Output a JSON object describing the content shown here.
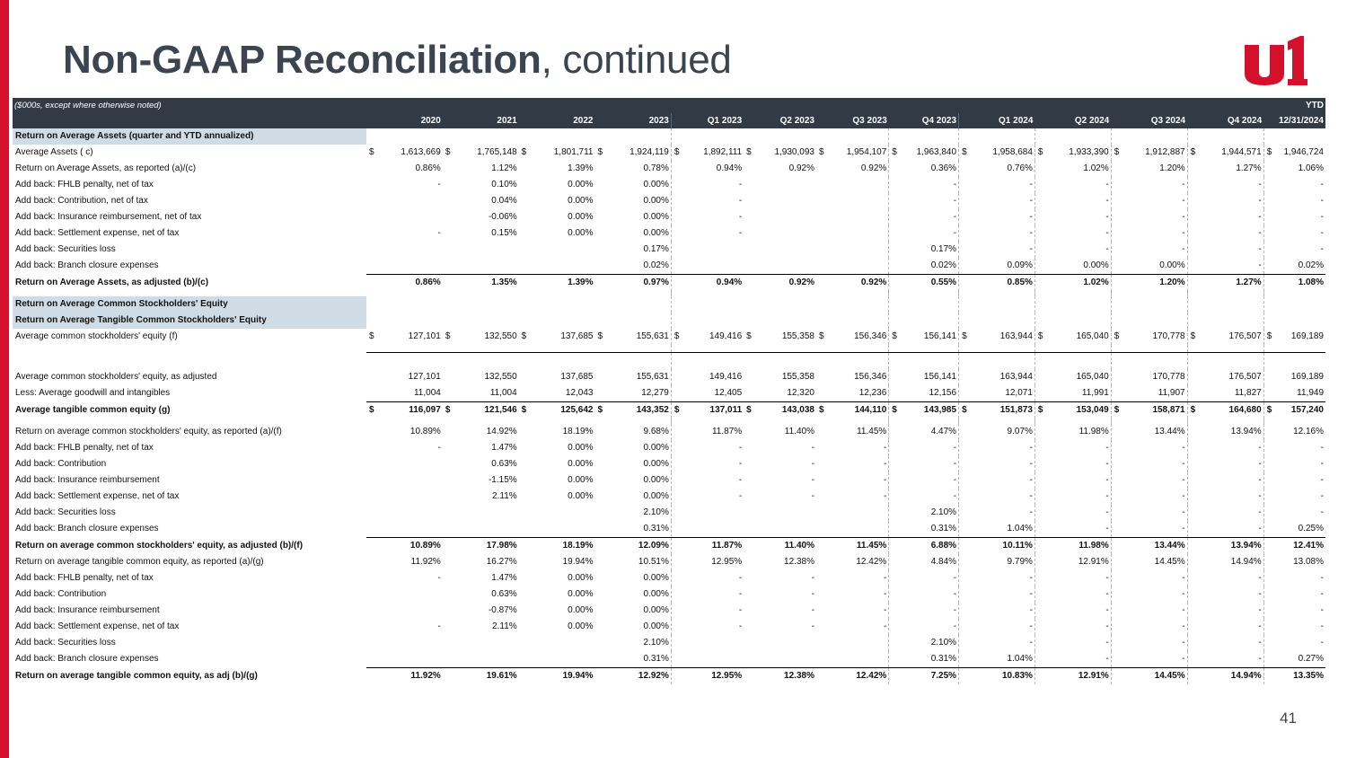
{
  "title_bold": "Non-GAAP Reconciliation",
  "title_rest": ", continued",
  "page_number": "41",
  "colors": {
    "accent_red": "#d4102b",
    "header_bg": "#323a45",
    "section_bg": "#cfdce6",
    "title": "#3b4451"
  },
  "table": {
    "note": "($000s, except where otherwise noted)",
    "ytd_label": "YTD",
    "columns": [
      "2020",
      "2021",
      "2022",
      "2023",
      "Q1 2023",
      "Q2 2023",
      "Q3 2023",
      "Q4 2023",
      "Q1 2024",
      "Q2 2024",
      "Q3 2024",
      "Q4 2024",
      "12/31/2024"
    ],
    "rows": [
      {
        "style": "sect",
        "label": "Return on Average Assets (quarter and YTD annualized)",
        "values": []
      },
      {
        "style": "",
        "label": "Average Assets ( c)",
        "dollar": true,
        "values": [
          "1,613,669",
          "1,765,148",
          "1,801,711",
          "1,924,119",
          "1,892,111",
          "1,930,093",
          "1,954,107",
          "1,963,840",
          "1,958,684",
          "1,933,390",
          "1,912,887",
          "1,944,571",
          "1,946,724"
        ]
      },
      {
        "style": "",
        "label": "Return on Average Assets, as reported (a)/(c)",
        "values": [
          "0.86%",
          "1.12%",
          "1.39%",
          "0.78%",
          "0.94%",
          "0.92%",
          "0.92%",
          "0.36%",
          "0.76%",
          "1.02%",
          "1.20%",
          "1.27%",
          "1.06%"
        ]
      },
      {
        "style": "",
        "label": "Add back: FHLB penalty, net of tax",
        "values": [
          "-",
          "0.10%",
          "0.00%",
          "0.00%",
          "-",
          "",
          "",
          "-",
          "-",
          "-",
          "-",
          "-",
          "-"
        ]
      },
      {
        "style": "",
        "label": "Add back: Contribution, net of tax",
        "values": [
          "",
          "0.04%",
          "0.00%",
          "0.00%",
          "-",
          "",
          "",
          "-",
          "-",
          "-",
          "-",
          "-",
          "-"
        ]
      },
      {
        "style": "",
        "label": "Add back: Insurance reimbursement, net of tax",
        "values": [
          "",
          "-0.06%",
          "0.00%",
          "0.00%",
          "-",
          "",
          "",
          "-",
          "-",
          "-",
          "-",
          "-",
          "-"
        ]
      },
      {
        "style": "",
        "label": "Add back: Settlement expense, net of tax",
        "values": [
          "-",
          "0.15%",
          "0.00%",
          "0.00%",
          "-",
          "",
          "",
          "-",
          "-",
          "-",
          "-",
          "-",
          "-"
        ]
      },
      {
        "style": "",
        "label": "Add back: Securities loss",
        "values": [
          "",
          "",
          "",
          "0.17%",
          "",
          "",
          "",
          "0.17%",
          "-",
          "-",
          "-",
          "-",
          "-"
        ]
      },
      {
        "style": "",
        "label": "Add back: Branch closure expenses",
        "values": [
          "",
          "",
          "",
          "0.02%",
          "",
          "",
          "",
          "0.02%",
          "0.09%",
          "0.00%",
          "0.00%",
          "-",
          "0.02%"
        ]
      },
      {
        "style": "bold topline",
        "label": "Return on Average Assets, as adjusted (b)/(c)",
        "values": [
          "0.86%",
          "1.35%",
          "1.39%",
          "0.97%",
          "0.94%",
          "0.92%",
          "0.92%",
          "0.55%",
          "0.85%",
          "1.02%",
          "1.20%",
          "1.27%",
          "1.08%"
        ]
      },
      {
        "style": "gap",
        "label": "",
        "values": []
      },
      {
        "style": "sect",
        "label": "Return on Average Common Stockholders' Equity",
        "values": []
      },
      {
        "style": "sect",
        "label": "Return on Average Tangible Common Stockholders' Equity",
        "values": []
      },
      {
        "style": "",
        "label": "Average common stockholders' equity (f)",
        "dollar": true,
        "values": [
          "127,101",
          "132,550",
          "137,685",
          "155,631",
          "149,416",
          "155,358",
          "156,346",
          "156,141",
          "163,944",
          "165,040",
          "170,778",
          "176,507",
          "169,189"
        ]
      },
      {
        "style": "gap2",
        "label": "",
        "values": []
      },
      {
        "style": "dline",
        "label": "",
        "values": [
          "",
          "",
          "",
          "",
          "",
          "",
          "",
          "",
          "",
          "",
          "",
          "",
          ""
        ]
      },
      {
        "style": "",
        "label": "Average common stockholders' equity, as adjusted",
        "values": [
          "127,101",
          "132,550",
          "137,685",
          "155,631",
          "149,416",
          "155,358",
          "156,346",
          "156,141",
          "163,944",
          "165,040",
          "170,778",
          "176,507",
          "169,189"
        ]
      },
      {
        "style": "",
        "label": "Less: Average goodwill and intangibles",
        "values": [
          "11,004",
          "11,004",
          "12,043",
          "12,279",
          "12,405",
          "12,320",
          "12,236",
          "12,156",
          "12,071",
          "11,991",
          "11,907",
          "11,827",
          "11,949"
        ]
      },
      {
        "style": "bold topline",
        "label": "Average tangible common equity (g)",
        "dollar": true,
        "values": [
          "116,097",
          "121,546",
          "125,642",
          "143,352",
          "137,011",
          "143,038",
          "144,110",
          "143,985",
          "151,873",
          "153,049",
          "158,871",
          "164,680",
          "157,240"
        ]
      },
      {
        "style": "gap",
        "label": "",
        "values": []
      },
      {
        "style": "",
        "label": "Return on average common stockholders' equity, as reported (a)/(f)",
        "values": [
          "10.89%",
          "14.92%",
          "18.19%",
          "9.68%",
          "11.87%",
          "11.40%",
          "11.45%",
          "4.47%",
          "9.07%",
          "11.98%",
          "13.44%",
          "13.94%",
          "12.16%"
        ]
      },
      {
        "style": "",
        "label": "Add back: FHLB penalty, net of tax",
        "values": [
          "-",
          "1.47%",
          "0.00%",
          "0.00%",
          "-",
          "-",
          "-",
          "-",
          "-",
          "-",
          "-",
          "-",
          "-"
        ]
      },
      {
        "style": "",
        "label": "Add back: Contribution",
        "values": [
          "",
          "0.63%",
          "0.00%",
          "0.00%",
          "-",
          "-",
          "-",
          "-",
          "-",
          "-",
          "-",
          "-",
          "-"
        ]
      },
      {
        "style": "",
        "label": "Add back: Insurance reimbursement",
        "values": [
          "",
          "-1.15%",
          "0.00%",
          "0.00%",
          "-",
          "-",
          "-",
          "-",
          "-",
          "-",
          "-",
          "-",
          "-"
        ]
      },
      {
        "style": "",
        "label": "Add back: Settlement expense, net of tax",
        "values": [
          "",
          "2.11%",
          "0.00%",
          "0.00%",
          "-",
          "-",
          "-",
          "-",
          "-",
          "-",
          "-",
          "-",
          "-"
        ]
      },
      {
        "style": "",
        "label": "Add back: Securities loss",
        "values": [
          "",
          "",
          "",
          "2.10%",
          "",
          "",
          "",
          "2.10%",
          "-",
          "-",
          "-",
          "-",
          "-"
        ]
      },
      {
        "style": "",
        "label": "Add back: Branch closure expenses",
        "values": [
          "",
          "",
          "",
          "0.31%",
          "",
          "",
          "",
          "0.31%",
          "1.04%",
          "-",
          "-",
          "-",
          "0.25%"
        ]
      },
      {
        "style": "bold topline",
        "label": "Return on average common stockholders' equity, as adjusted (b)/(f)",
        "values": [
          "10.89%",
          "17.98%",
          "18.19%",
          "12.09%",
          "11.87%",
          "11.40%",
          "11.45%",
          "6.88%",
          "10.11%",
          "11.98%",
          "13.44%",
          "13.94%",
          "12.41%"
        ]
      },
      {
        "style": "",
        "label": "Return on average tangible common equity, as reported (a)/(g)",
        "values": [
          "11.92%",
          "16.27%",
          "19.94%",
          "10.51%",
          "12.95%",
          "12.38%",
          "12.42%",
          "4.84%",
          "9.79%",
          "12.91%",
          "14.45%",
          "14.94%",
          "13.08%"
        ]
      },
      {
        "style": "",
        "label": "Add back: FHLB penalty, net of tax",
        "values": [
          "-",
          "1.47%",
          "0.00%",
          "0.00%",
          "-",
          "-",
          "-",
          "-",
          "-",
          "-",
          "-",
          "-",
          "-"
        ]
      },
      {
        "style": "",
        "label": "Add back: Contribution",
        "values": [
          "",
          "0.63%",
          "0.00%",
          "0.00%",
          "-",
          "-",
          "-",
          "-",
          "-",
          "-",
          "-",
          "-",
          "-"
        ]
      },
      {
        "style": "",
        "label": "Add back: Insurance reimbursement",
        "values": [
          "",
          "-0.87%",
          "0.00%",
          "0.00%",
          "-",
          "-",
          "-",
          "-",
          "-",
          "-",
          "-",
          "-",
          "-"
        ]
      },
      {
        "style": "",
        "label": "Add back: Settlement expense, net of tax",
        "values": [
          "-",
          "2.11%",
          "0.00%",
          "0.00%",
          "-",
          "-",
          "-",
          "-",
          "-",
          "-",
          "-",
          "-",
          "-"
        ]
      },
      {
        "style": "",
        "label": "Add back: Securities loss",
        "values": [
          "",
          "",
          "",
          "2.10%",
          "",
          "",
          "",
          "2.10%",
          "-",
          "-",
          "-",
          "-",
          "-"
        ]
      },
      {
        "style": "",
        "label": "Add back: Branch closure expenses",
        "values": [
          "",
          "",
          "",
          "0.31%",
          "",
          "",
          "",
          "0.31%",
          "1.04%",
          "-",
          "-",
          "-",
          "0.27%"
        ]
      },
      {
        "style": "bold topline",
        "label": "Return on average tangible common equity, as adj (b)/(g)",
        "values": [
          "11.92%",
          "19.61%",
          "19.94%",
          "12.92%",
          "12.95%",
          "12.38%",
          "12.42%",
          "7.25%",
          "10.83%",
          "12.91%",
          "14.45%",
          "14.94%",
          "13.35%"
        ]
      }
    ]
  }
}
